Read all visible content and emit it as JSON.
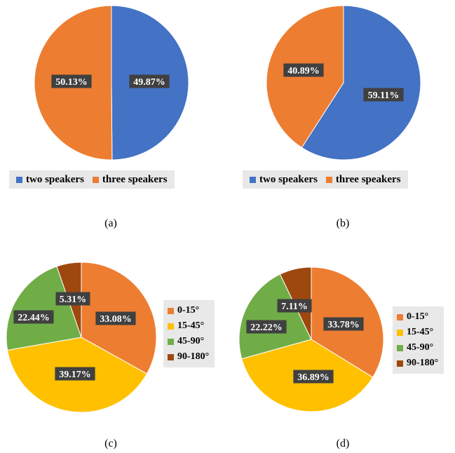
{
  "captions": [
    "(a)",
    "(b)",
    "(c)",
    "(d)"
  ],
  "chart_data": [
    {
      "type": "pie",
      "title": "",
      "categories": [
        "two speakers",
        "three speakers"
      ],
      "values": [
        49.87,
        50.13
      ],
      "data_labels": [
        "49.87%",
        "50.13%"
      ],
      "colors": [
        "#4472C4",
        "#ED7D31"
      ],
      "legend_position": "bottom"
    },
    {
      "type": "pie",
      "title": "",
      "categories": [
        "two speakers",
        "three speakers"
      ],
      "values": [
        59.11,
        40.89
      ],
      "data_labels": [
        "59.11%",
        "40.89%"
      ],
      "colors": [
        "#4472C4",
        "#ED7D31"
      ],
      "legend_position": "bottom"
    },
    {
      "type": "pie",
      "title": "",
      "categories": [
        "0-15°",
        "15-45°",
        "45-90°",
        "90-180°"
      ],
      "values": [
        33.08,
        39.17,
        22.44,
        5.31
      ],
      "data_labels": [
        "33.08%",
        "39.17%",
        "22.44%",
        "5.31%"
      ],
      "colors": [
        "#ED7D31",
        "#FFC000",
        "#70AD47",
        "#9E480E"
      ],
      "legend_position": "right"
    },
    {
      "type": "pie",
      "title": "",
      "categories": [
        "0-15°",
        "15-45°",
        "45-90°",
        "90-180°"
      ],
      "values": [
        33.78,
        36.89,
        22.22,
        7.11
      ],
      "data_labels": [
        "33.78%",
        "36.89%",
        "22.22%",
        "7.11%"
      ],
      "colors": [
        "#ED7D31",
        "#FFC000",
        "#70AD47",
        "#9E480E"
      ],
      "legend_position": "right"
    }
  ]
}
